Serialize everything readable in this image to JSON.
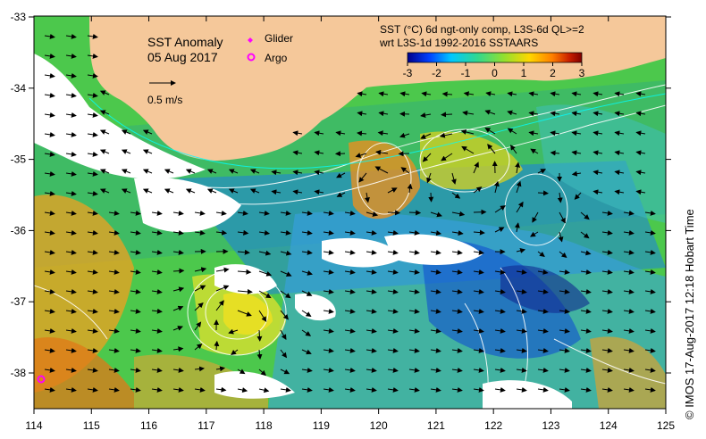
{
  "title": "SST Anomaly",
  "date": "05 Aug 2017",
  "legend": {
    "glider_label": "Glider",
    "argo_label": "Argo",
    "vector_label": "0.5 m/s",
    "glider_color": "#ff00ff",
    "argo_color": "#ff00ff"
  },
  "colorbar": {
    "title_line1": "SST (°C) 6d ngt-only comp, L3S-6d QL>=2",
    "title_line2": "wrt L3S-1d 1992-2016 SSTAARS",
    "ticks": [
      "-3",
      "-2",
      "-1",
      "0",
      "1",
      "2",
      "3"
    ],
    "colors": [
      "#00008b",
      "#0040ff",
      "#00c8ff",
      "#30d890",
      "#90e030",
      "#ffd700",
      "#ff8000",
      "#c81e00",
      "#800000"
    ]
  },
  "axes": {
    "x_ticks": [
      "114",
      "115",
      "116",
      "117",
      "118",
      "119",
      "120",
      "121",
      "122",
      "123",
      "124",
      "125"
    ],
    "y_ticks": [
      "-33",
      "-34",
      "-35",
      "-36",
      "-37",
      "-38"
    ]
  },
  "land_color": "#f5c89a",
  "credit": "©  IMOS 17-Aug-2017 12:18 Hobart Time"
}
